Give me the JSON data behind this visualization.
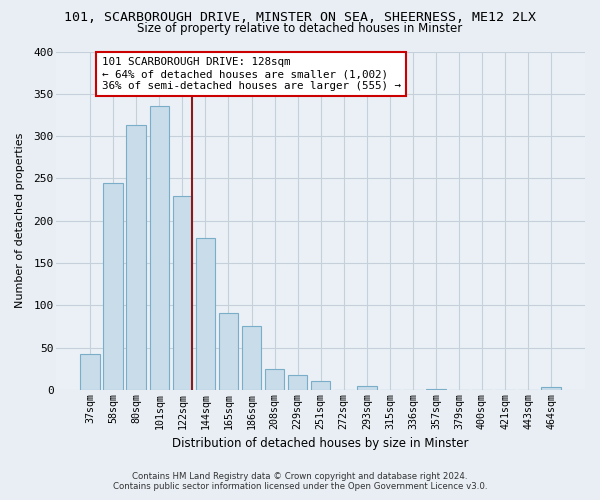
{
  "title": "101, SCARBOROUGH DRIVE, MINSTER ON SEA, SHEERNESS, ME12 2LX",
  "subtitle": "Size of property relative to detached houses in Minster",
  "xlabel": "Distribution of detached houses by size in Minster",
  "ylabel": "Number of detached properties",
  "bar_labels": [
    "37sqm",
    "58sqm",
    "80sqm",
    "101sqm",
    "122sqm",
    "144sqm",
    "165sqm",
    "186sqm",
    "208sqm",
    "229sqm",
    "251sqm",
    "272sqm",
    "293sqm",
    "315sqm",
    "336sqm",
    "357sqm",
    "379sqm",
    "400sqm",
    "421sqm",
    "443sqm",
    "464sqm"
  ],
  "bar_values": [
    43,
    245,
    313,
    335,
    229,
    180,
    91,
    75,
    25,
    18,
    10,
    0,
    5,
    0,
    0,
    1,
    0,
    0,
    0,
    0,
    3
  ],
  "bar_color": "#c8dcea",
  "bar_edge_color": "#7aaec8",
  "vline_color": "#8b1a1a",
  "annotation_line1": "101 SCARBOROUGH DRIVE: 128sqm",
  "annotation_line2": "← 64% of detached houses are smaller (1,002)",
  "annotation_line3": "36% of semi-detached houses are larger (555) →",
  "annotation_box_color": "white",
  "annotation_box_edge": "#cc0000",
  "ylim": [
    0,
    400
  ],
  "yticks": [
    0,
    50,
    100,
    150,
    200,
    250,
    300,
    350,
    400
  ],
  "footer1": "Contains HM Land Registry data © Crown copyright and database right 2024.",
  "footer2": "Contains public sector information licensed under the Open Government Licence v3.0.",
  "bg_color": "#e8eef4",
  "plot_bg_color": "#eaf0f6",
  "grid_color": "#c5d0da"
}
